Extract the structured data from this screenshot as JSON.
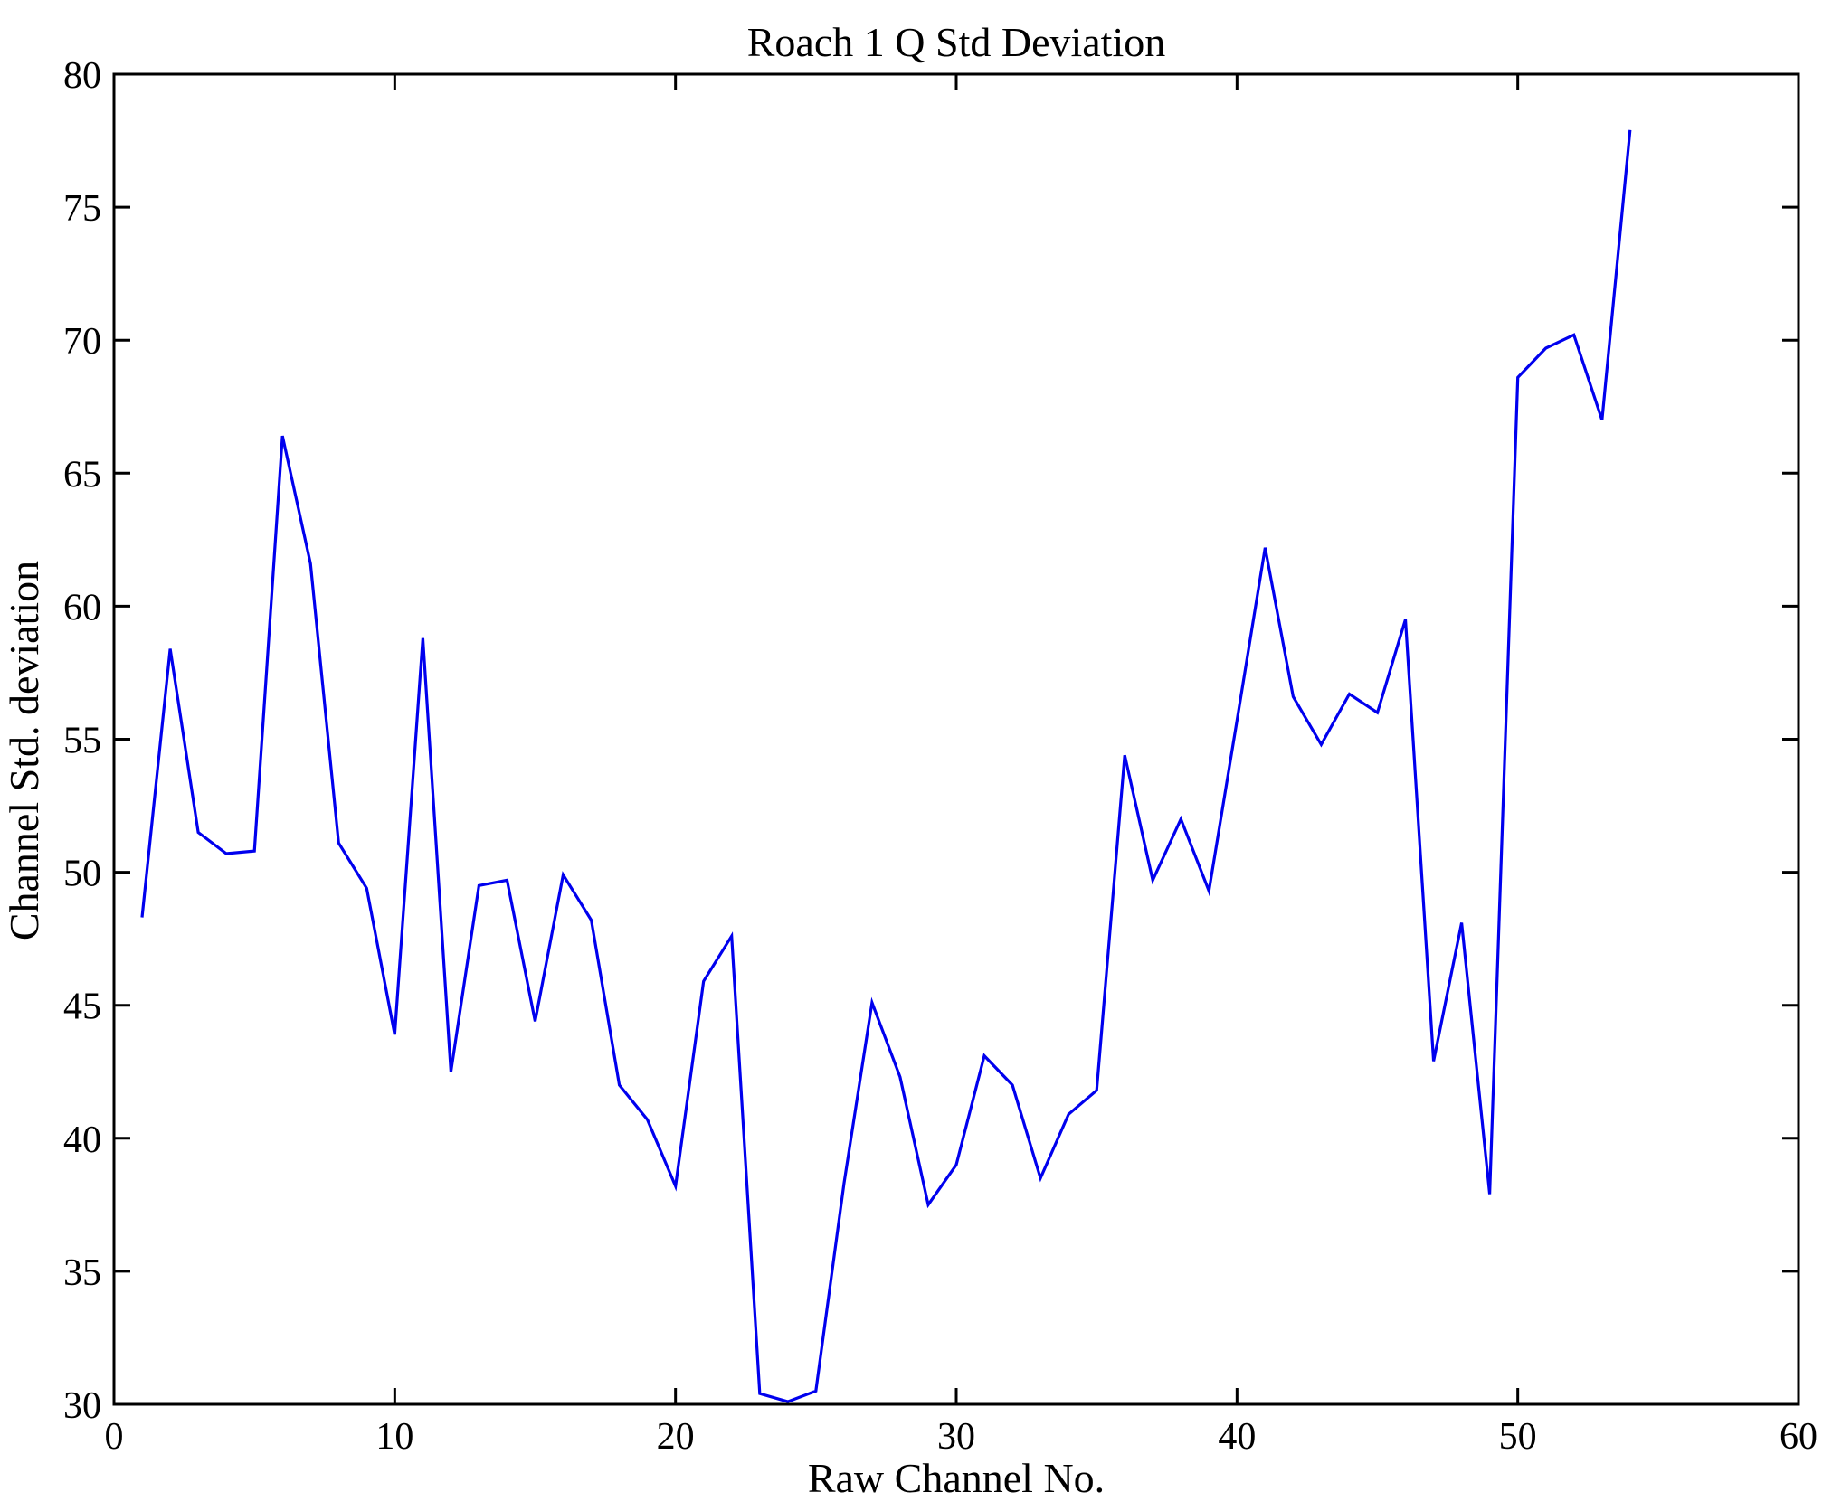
{
  "chart_data": {
    "type": "line",
    "title": "Roach 1 Q Std Deviation",
    "xlabel": "Raw Channel No.",
    "ylabel": "Channel Std. deviation",
    "xlim": [
      0,
      60
    ],
    "ylim": [
      30,
      80
    ],
    "xticks": [
      0,
      10,
      20,
      30,
      40,
      50,
      60
    ],
    "yticks": [
      30,
      35,
      40,
      45,
      50,
      55,
      60,
      65,
      70,
      75,
      80
    ],
    "grid": false,
    "legend": null,
    "box": true,
    "line_color": "#0000EE",
    "axis_color": "#000000",
    "background": "#FFFFFF",
    "x": [
      1,
      2,
      3,
      4,
      5,
      6,
      7,
      8,
      9,
      10,
      11,
      12,
      13,
      14,
      15,
      16,
      17,
      18,
      19,
      20,
      21,
      22,
      23,
      24,
      25,
      26,
      27,
      28,
      29,
      30,
      31,
      32,
      33,
      34,
      35,
      36,
      37,
      38,
      39,
      40,
      41,
      42,
      43,
      44,
      45,
      46,
      47,
      48,
      49,
      50,
      51,
      52,
      53,
      54
    ],
    "values": [
      48.3,
      58.4,
      51.5,
      50.7,
      50.8,
      66.4,
      61.6,
      51.1,
      49.4,
      43.9,
      58.8,
      42.5,
      49.5,
      49.7,
      44.4,
      49.9,
      48.2,
      42.0,
      40.7,
      38.2,
      45.9,
      47.6,
      30.4,
      30.1,
      30.5,
      38.3,
      45.1,
      42.3,
      37.5,
      39.0,
      43.1,
      42.0,
      38.5,
      40.9,
      41.8,
      54.4,
      49.7,
      52.0,
      49.3,
      55.7,
      62.2,
      56.6,
      54.8,
      56.7,
      56.0,
      59.5,
      42.9,
      48.1,
      37.9,
      68.6,
      69.7,
      70.2,
      67.0,
      77.9
    ]
  }
}
